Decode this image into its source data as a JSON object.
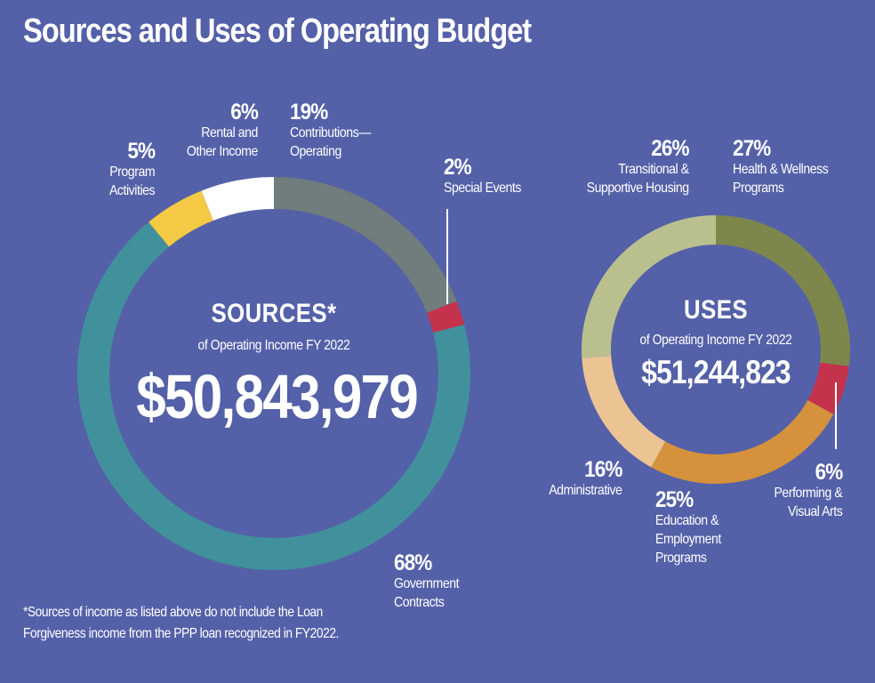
{
  "page": {
    "title": "Sources and Uses of Operating Budget",
    "footnote": "*Sources of income as listed above do not include the Loan Forgiveness income from the PPP loan recognized in FY2022."
  },
  "chart_data": [
    {
      "type": "pie",
      "variant": "donut",
      "title": "SOURCES*",
      "subtitle": "of Operating Income FY 2022",
      "total_label": "$50,843,979",
      "total": 50843979,
      "start": "12 o'clock, clockwise",
      "slices": [
        {
          "label": "Contributions—Operating",
          "pct_label": "19%",
          "value": 19,
          "color": "#717d7c"
        },
        {
          "label": "Special Events",
          "pct_label": "2%",
          "value": 2,
          "color": "#c4334b"
        },
        {
          "label": "Government Contracts",
          "pct_label": "68%",
          "value": 68,
          "color": "#41919d"
        },
        {
          "label": "Program Activities",
          "pct_label": "5%",
          "value": 5,
          "color": "#f4c944"
        },
        {
          "label": "Rental and Other Income",
          "pct_label": "6%",
          "value": 6,
          "color": "#ffffff"
        }
      ]
    },
    {
      "type": "pie",
      "variant": "donut",
      "title": "USES",
      "subtitle": "of Operating Income FY 2022",
      "total_label": "$51,244,823",
      "total": 51244823,
      "start": "12 o'clock, clockwise",
      "slices": [
        {
          "label": "Health & Wellness Programs",
          "pct_label": "27%",
          "value": 27,
          "color": "#7e874b"
        },
        {
          "label": "Performing & Visual Arts",
          "pct_label": "6%",
          "value": 6,
          "color": "#c4334b"
        },
        {
          "label": "Education & Employment Programs",
          "pct_label": "25%",
          "value": 25,
          "color": "#d5913c"
        },
        {
          "label": "Administrative",
          "pct_label": "16%",
          "value": 16,
          "color": "#ecc493"
        },
        {
          "label": "Transitional & Supportive Housing",
          "pct_label": "26%",
          "value": 26,
          "color": "#b9c08d"
        }
      ]
    }
  ],
  "labels": {
    "sources": {
      "contributions": {
        "pct": "19%",
        "line1": "Contributions—",
        "line2": "Operating"
      },
      "special": {
        "pct": "2%",
        "line1": "Special Events"
      },
      "government": {
        "pct": "68%",
        "line1": "Government",
        "line2": "Contracts"
      },
      "program": {
        "pct": "5%",
        "line1": "Program",
        "line2": "Activities"
      },
      "rental": {
        "pct": "6%",
        "line1": "Rental and",
        "line2": "Other Income"
      }
    },
    "uses": {
      "health": {
        "pct": "27%",
        "line1": "Health & Wellness",
        "line2": "Programs"
      },
      "performing": {
        "pct": "6%",
        "line1": "Performing &",
        "line2": "Visual Arts"
      },
      "education": {
        "pct": "25%",
        "line1": "Education &",
        "line2": "Employment",
        "line3": "Programs"
      },
      "administrative": {
        "pct": "16%",
        "line1": "Administrative"
      },
      "transitional": {
        "pct": "26%",
        "line1": "Transitional &",
        "line2": "Supportive Housing"
      }
    }
  }
}
